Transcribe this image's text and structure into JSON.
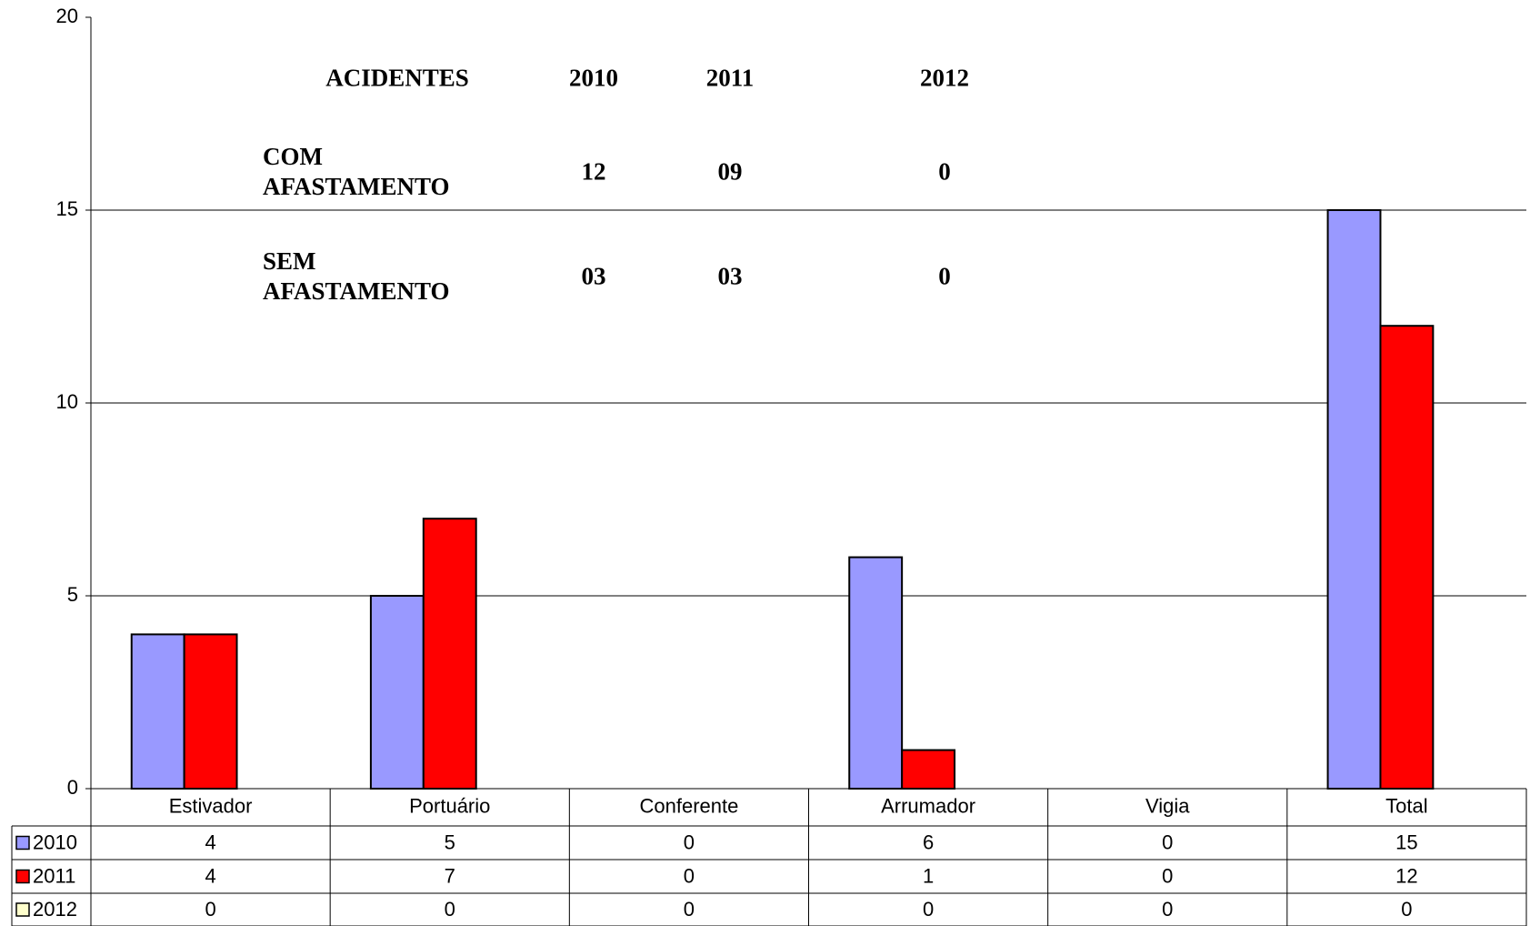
{
  "chart_data": {
    "type": "bar",
    "categories": [
      "Estivador",
      "Portuário",
      "Conferente",
      "Arrumador",
      "Vigia",
      "Total"
    ],
    "series": [
      {
        "name": "2010",
        "color": "#9999ff",
        "values": [
          4,
          5,
          0,
          6,
          0,
          15
        ]
      },
      {
        "name": "2011",
        "color": "#ff0000",
        "values": [
          4,
          7,
          0,
          1,
          0,
          12
        ]
      },
      {
        "name": "2012",
        "color": "#ffffcc",
        "values": [
          0,
          0,
          0,
          0,
          0,
          0
        ]
      }
    ],
    "ylim": [
      0,
      20
    ],
    "yticks": [
      0,
      5,
      10,
      15,
      20
    ],
    "grid": true,
    "data_table": true,
    "annotation_table": {
      "header": [
        "ACIDENTES",
        "2010",
        "2011",
        "2012"
      ],
      "rows": [
        [
          "COM AFASTAMENTO",
          "12",
          "09",
          "0"
        ],
        [
          "SEM AFASTAMENTO",
          "03",
          "03",
          "0"
        ]
      ]
    }
  }
}
